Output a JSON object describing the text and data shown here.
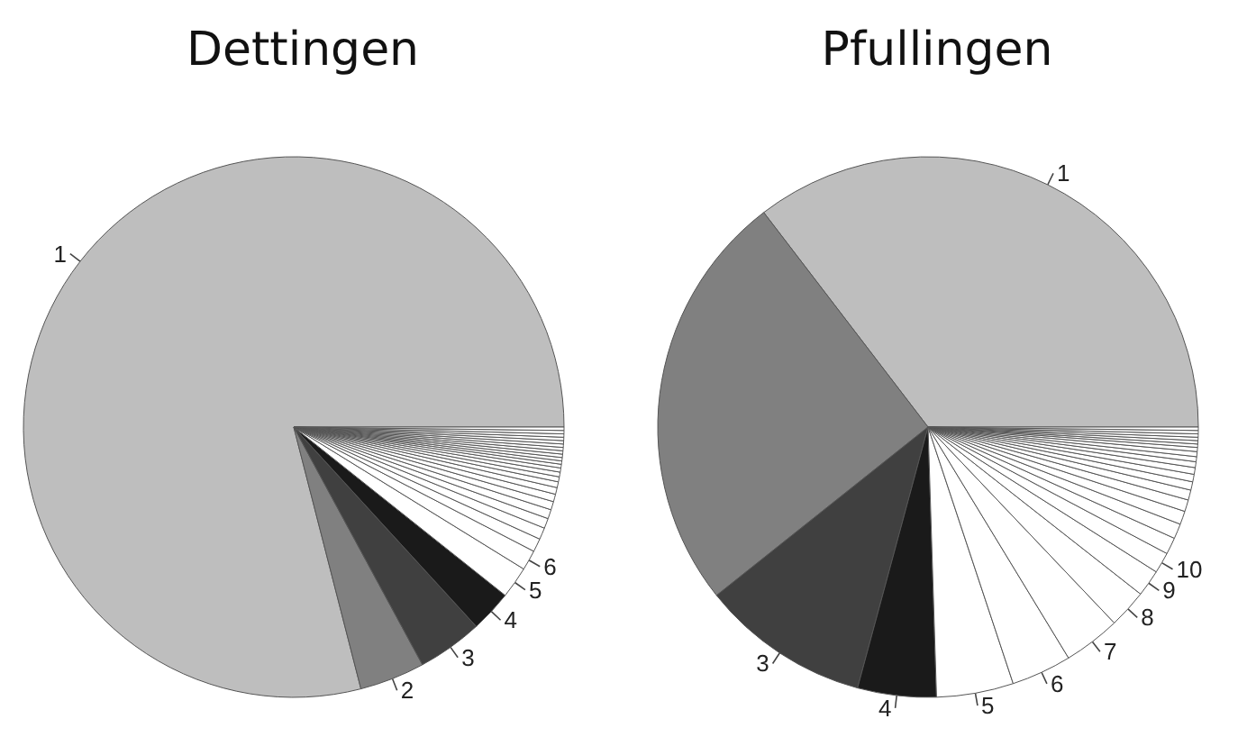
{
  "chart_data": [
    {
      "type": "pie",
      "title": "Dettingen",
      "categories": [
        "1",
        "2",
        "3",
        "4",
        "5",
        "6",
        null,
        null,
        null,
        null,
        null,
        null,
        null,
        null,
        null,
        null,
        null,
        null,
        null,
        null,
        null,
        null,
        null,
        null,
        null,
        null,
        null,
        null,
        null
      ],
      "values": [
        79.0,
        3.9,
        3.9,
        2.5,
        1.9,
        1.2,
        0.8,
        0.7,
        0.6,
        0.55,
        0.5,
        0.45,
        0.4,
        0.35,
        0.3,
        0.28,
        0.25,
        0.22,
        0.2,
        0.2,
        0.2,
        0.2,
        0.2,
        0.2,
        0.2,
        0.2,
        0.2,
        0.2,
        0.2
      ],
      "colors": [
        "#bebebe",
        "#808080",
        "#404040",
        "#1a1a1a",
        "#ffffff",
        "#ffffff",
        "#ffffff",
        "#ffffff",
        "#ffffff",
        "#ffffff",
        "#ffffff",
        "#ffffff",
        "#ffffff",
        "#ffffff",
        "#ffffff",
        "#ffffff",
        "#ffffff",
        "#ffffff",
        "#ffffff",
        "#ffffff",
        "#ffffff",
        "#ffffff",
        "#ffffff",
        "#ffffff",
        "#ffffff",
        "#ffffff",
        "#ffffff",
        "#ffffff",
        "#ffffff"
      ]
    },
    {
      "type": "pie",
      "title": "Pfullingen",
      "categories": [
        "1",
        null,
        "3",
        "4",
        "5",
        "6",
        "7",
        "8",
        "9",
        "10",
        null,
        null,
        null,
        null,
        null,
        null,
        null,
        null,
        null,
        null,
        null,
        null,
        null,
        null,
        null,
        null,
        null,
        null
      ],
      "values": [
        35.4,
        25.3,
        10.1,
        4.7,
        4.6,
        3.6,
        3.4,
        2.3,
        1.6,
        1.25,
        1.0,
        0.9,
        0.8,
        0.7,
        0.6,
        0.5,
        0.45,
        0.4,
        0.35,
        0.3,
        0.3,
        0.25,
        0.2,
        0.2,
        0.2,
        0.2,
        0.2,
        0.2
      ],
      "colors": [
        "#bebebe",
        "#808080",
        "#404040",
        "#1a1a1a",
        "#ffffff",
        "#ffffff",
        "#ffffff",
        "#ffffff",
        "#ffffff",
        "#ffffff",
        "#ffffff",
        "#ffffff",
        "#ffffff",
        "#ffffff",
        "#ffffff",
        "#ffffff",
        "#ffffff",
        "#ffffff",
        "#ffffff",
        "#ffffff",
        "#ffffff",
        "#ffffff",
        "#ffffff",
        "#ffffff",
        "#ffffff",
        "#ffffff",
        "#ffffff",
        "#ffffff"
      ]
    }
  ]
}
